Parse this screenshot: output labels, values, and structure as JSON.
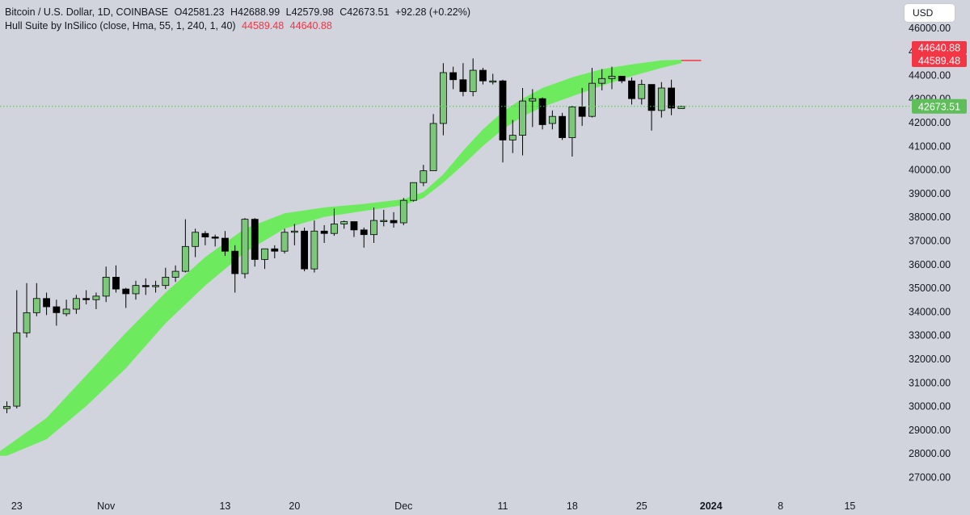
{
  "legend": {
    "symbol": "Bitcoin / U.S. Dollar, 1D, COINBASE",
    "open": "O42581.23",
    "high": "H42688.99",
    "low": "L42579.98",
    "close": "C42673.51",
    "change": "+92.28 (+0.22%)",
    "indicator": "Hull Suite by InSilico (close, Hma, 55, 1, 240, 1, 40)",
    "ind_val1": "44589.48",
    "ind_val2": "44640.88"
  },
  "currency_button": "USD",
  "colors": {
    "background": "#d1d4dc",
    "up": "#7cc77a",
    "down": "#000000",
    "hull_band": "#6eea5f",
    "price_label": "#5fbd5a",
    "hull_label": "#f23645"
  },
  "chart_data": {
    "type": "candlestick",
    "ylim": [
      26500,
      46500
    ],
    "y_ticks": [
      "27000.00",
      "28000.00",
      "29000.00",
      "30000.00",
      "31000.00",
      "32000.00",
      "33000.00",
      "34000.00",
      "35000.00",
      "36000.00",
      "37000.00",
      "38000.00",
      "39000.00",
      "40000.00",
      "41000.00",
      "42000.00",
      "43000.00",
      "44000.00",
      "45000.00",
      "46000.00"
    ],
    "x_ticks": [
      {
        "label": "23",
        "bold": false,
        "date": "2023-10-23"
      },
      {
        "label": "Nov",
        "bold": false,
        "date": "2023-11-01"
      },
      {
        "label": "13",
        "bold": false,
        "date": "2023-11-13"
      },
      {
        "label": "20",
        "bold": false,
        "date": "2023-11-20"
      },
      {
        "label": "Dec",
        "bold": false,
        "date": "2023-12-01"
      },
      {
        "label": "11",
        "bold": false,
        "date": "2023-12-11"
      },
      {
        "label": "18",
        "bold": false,
        "date": "2023-12-18"
      },
      {
        "label": "25",
        "bold": false,
        "date": "2023-12-25"
      },
      {
        "label": "2024",
        "bold": true,
        "date": "2024-01-01"
      },
      {
        "label": "8",
        "bold": false,
        "date": "2024-01-08"
      },
      {
        "label": "15",
        "bold": false,
        "date": "2024-01-15"
      }
    ],
    "candles": [
      {
        "d": "2023-10-22",
        "o": 29900,
        "h": 30200,
        "l": 29700,
        "c": 29990
      },
      {
        "d": "2023-10-23",
        "o": 30000,
        "h": 34900,
        "l": 29900,
        "c": 33100
      },
      {
        "d": "2023-10-24",
        "o": 33100,
        "h": 35200,
        "l": 32900,
        "c": 33950
      },
      {
        "d": "2023-10-25",
        "o": 33950,
        "h": 35200,
        "l": 33800,
        "c": 34550
      },
      {
        "d": "2023-10-26",
        "o": 34550,
        "h": 34800,
        "l": 33850,
        "c": 34200
      },
      {
        "d": "2023-10-27",
        "o": 34200,
        "h": 34500,
        "l": 33400,
        "c": 33950
      },
      {
        "d": "2023-10-28",
        "o": 33900,
        "h": 34500,
        "l": 33800,
        "c": 34100
      },
      {
        "d": "2023-10-29",
        "o": 34100,
        "h": 34700,
        "l": 33900,
        "c": 34550
      },
      {
        "d": "2023-10-30",
        "o": 34550,
        "h": 34900,
        "l": 34300,
        "c": 34500
      },
      {
        "d": "2023-10-31",
        "o": 34500,
        "h": 34800,
        "l": 34100,
        "c": 34650
      },
      {
        "d": "2023-11-01",
        "o": 34650,
        "h": 35900,
        "l": 34400,
        "c": 35450
      },
      {
        "d": "2023-11-02",
        "o": 35450,
        "h": 35950,
        "l": 34800,
        "c": 34950
      },
      {
        "d": "2023-11-03",
        "o": 34950,
        "h": 35000,
        "l": 34150,
        "c": 34750
      },
      {
        "d": "2023-11-04",
        "o": 34750,
        "h": 35300,
        "l": 34500,
        "c": 35100
      },
      {
        "d": "2023-11-05",
        "o": 35100,
        "h": 35400,
        "l": 34700,
        "c": 35050
      },
      {
        "d": "2023-11-06",
        "o": 35050,
        "h": 35300,
        "l": 34800,
        "c": 35100
      },
      {
        "d": "2023-11-07",
        "o": 35100,
        "h": 35850,
        "l": 34950,
        "c": 35450
      },
      {
        "d": "2023-11-08",
        "o": 35450,
        "h": 35950,
        "l": 35250,
        "c": 35700
      },
      {
        "d": "2023-11-09",
        "o": 35700,
        "h": 37900,
        "l": 35650,
        "c": 36750
      },
      {
        "d": "2023-11-10",
        "o": 36750,
        "h": 37500,
        "l": 36300,
        "c": 37350
      },
      {
        "d": "2023-11-11",
        "o": 37300,
        "h": 37400,
        "l": 36800,
        "c": 37150
      },
      {
        "d": "2023-11-12",
        "o": 37150,
        "h": 37250,
        "l": 36750,
        "c": 37100
      },
      {
        "d": "2023-11-13",
        "o": 37100,
        "h": 37400,
        "l": 36350,
        "c": 36550
      },
      {
        "d": "2023-11-14",
        "o": 36550,
        "h": 36800,
        "l": 34800,
        "c": 35600
      },
      {
        "d": "2023-11-15",
        "o": 35600,
        "h": 37950,
        "l": 35400,
        "c": 37900
      },
      {
        "d": "2023-11-16",
        "o": 37900,
        "h": 37950,
        "l": 35900,
        "c": 36200
      },
      {
        "d": "2023-11-17",
        "o": 36200,
        "h": 36600,
        "l": 35800,
        "c": 36650
      },
      {
        "d": "2023-11-18",
        "o": 36650,
        "h": 36800,
        "l": 36250,
        "c": 36550
      },
      {
        "d": "2023-11-19",
        "o": 36550,
        "h": 37500,
        "l": 36450,
        "c": 37350
      },
      {
        "d": "2023-11-20",
        "o": 37350,
        "h": 37700,
        "l": 36800,
        "c": 37400
      },
      {
        "d": "2023-11-21",
        "o": 37400,
        "h": 37550,
        "l": 35700,
        "c": 35800
      },
      {
        "d": "2023-11-22",
        "o": 35800,
        "h": 37850,
        "l": 35650,
        "c": 37400
      },
      {
        "d": "2023-11-23",
        "o": 37400,
        "h": 37650,
        "l": 36900,
        "c": 37300
      },
      {
        "d": "2023-11-24",
        "o": 37300,
        "h": 38350,
        "l": 37200,
        "c": 37700
      },
      {
        "d": "2023-11-25",
        "o": 37700,
        "h": 37850,
        "l": 37500,
        "c": 37800
      },
      {
        "d": "2023-11-26",
        "o": 37800,
        "h": 37800,
        "l": 37150,
        "c": 37450
      },
      {
        "d": "2023-11-27",
        "o": 37450,
        "h": 37550,
        "l": 36700,
        "c": 37250
      },
      {
        "d": "2023-11-28",
        "o": 37250,
        "h": 38400,
        "l": 36900,
        "c": 37850
      },
      {
        "d": "2023-11-29",
        "o": 37850,
        "h": 38300,
        "l": 37600,
        "c": 37850
      },
      {
        "d": "2023-11-30",
        "o": 37850,
        "h": 38200,
        "l": 37550,
        "c": 37750
      },
      {
        "d": "2023-12-01",
        "o": 37750,
        "h": 38800,
        "l": 37650,
        "c": 38700
      },
      {
        "d": "2023-12-02",
        "o": 38700,
        "h": 39450,
        "l": 38650,
        "c": 39450
      },
      {
        "d": "2023-12-03",
        "o": 39450,
        "h": 40200,
        "l": 39300,
        "c": 39950
      },
      {
        "d": "2023-12-04",
        "o": 39950,
        "h": 42350,
        "l": 39950,
        "c": 41950
      },
      {
        "d": "2023-12-05",
        "o": 41950,
        "h": 44500,
        "l": 41450,
        "c": 44100
      },
      {
        "d": "2023-12-06",
        "o": 44100,
        "h": 44350,
        "l": 43400,
        "c": 43800
      },
      {
        "d": "2023-12-07",
        "o": 43800,
        "h": 44500,
        "l": 43100,
        "c": 43300
      },
      {
        "d": "2023-12-08",
        "o": 43300,
        "h": 44700,
        "l": 43100,
        "c": 44200
      },
      {
        "d": "2023-12-09",
        "o": 44200,
        "h": 44300,
        "l": 43600,
        "c": 43750
      },
      {
        "d": "2023-12-10",
        "o": 43750,
        "h": 44050,
        "l": 43600,
        "c": 43750
      },
      {
        "d": "2023-12-11",
        "o": 43750,
        "h": 43800,
        "l": 40300,
        "c": 41250
      },
      {
        "d": "2023-12-12",
        "o": 41250,
        "h": 42100,
        "l": 40700,
        "c": 41450
      },
      {
        "d": "2023-12-13",
        "o": 41450,
        "h": 43450,
        "l": 40600,
        "c": 42900
      },
      {
        "d": "2023-12-14",
        "o": 42900,
        "h": 43400,
        "l": 41800,
        "c": 43000
      },
      {
        "d": "2023-12-15",
        "o": 43000,
        "h": 43050,
        "l": 41700,
        "c": 41900
      },
      {
        "d": "2023-12-16",
        "o": 41950,
        "h": 42500,
        "l": 41700,
        "c": 42250
      },
      {
        "d": "2023-12-17",
        "o": 42250,
        "h": 42400,
        "l": 41250,
        "c": 41350
      },
      {
        "d": "2023-12-18",
        "o": 41350,
        "h": 42700,
        "l": 40550,
        "c": 42650
      },
      {
        "d": "2023-12-19",
        "o": 42650,
        "h": 43450,
        "l": 41850,
        "c": 42250
      },
      {
        "d": "2023-12-20",
        "o": 42250,
        "h": 44300,
        "l": 42200,
        "c": 43650
      },
      {
        "d": "2023-12-21",
        "o": 43650,
        "h": 44250,
        "l": 43350,
        "c": 43850
      },
      {
        "d": "2023-12-22",
        "o": 43850,
        "h": 44350,
        "l": 43400,
        "c": 43950
      },
      {
        "d": "2023-12-23",
        "o": 43950,
        "h": 43950,
        "l": 43650,
        "c": 43750
      },
      {
        "d": "2023-12-24",
        "o": 43750,
        "h": 43900,
        "l": 42750,
        "c": 43000
      },
      {
        "d": "2023-12-25",
        "o": 43000,
        "h": 43800,
        "l": 42750,
        "c": 43600
      },
      {
        "d": "2023-12-26",
        "o": 43600,
        "h": 43600,
        "l": 41650,
        "c": 42500
      },
      {
        "d": "2023-12-27",
        "o": 42500,
        "h": 43700,
        "l": 42200,
        "c": 43450
      },
      {
        "d": "2023-12-28",
        "o": 43450,
        "h": 43800,
        "l": 42300,
        "c": 42600
      },
      {
        "d": "2023-12-29",
        "o": 42581.23,
        "h": 42688.99,
        "l": 42579.98,
        "c": 42673.51
      }
    ],
    "hull_band": [
      {
        "d": "2023-10-22",
        "a": 27900,
        "b": 28300
      },
      {
        "d": "2023-10-26",
        "a": 28600,
        "b": 29500
      },
      {
        "d": "2023-10-30",
        "a": 30000,
        "b": 31300
      },
      {
        "d": "2023-11-03",
        "a": 31600,
        "b": 33100
      },
      {
        "d": "2023-11-07",
        "a": 33500,
        "b": 34800
      },
      {
        "d": "2023-11-11",
        "a": 35100,
        "b": 36300
      },
      {
        "d": "2023-11-15",
        "a": 36500,
        "b": 37500
      },
      {
        "d": "2023-11-19",
        "a": 37500,
        "b": 38150
      },
      {
        "d": "2023-11-23",
        "a": 38000,
        "b": 38400
      },
      {
        "d": "2023-11-27",
        "a": 38250,
        "b": 38550
      },
      {
        "d": "2023-12-01",
        "a": 38500,
        "b": 38750
      },
      {
        "d": "2023-12-03",
        "a": 38800,
        "b": 39050
      },
      {
        "d": "2023-12-05",
        "a": 39450,
        "b": 39800
      },
      {
        "d": "2023-12-07",
        "a": 40200,
        "b": 40800
      },
      {
        "d": "2023-12-09",
        "a": 41000,
        "b": 41700
      },
      {
        "d": "2023-12-11",
        "a": 41700,
        "b": 42450
      },
      {
        "d": "2023-12-13",
        "a": 42250,
        "b": 43000
      },
      {
        "d": "2023-12-15",
        "a": 42650,
        "b": 43450
      },
      {
        "d": "2023-12-18",
        "a": 43100,
        "b": 43900
      },
      {
        "d": "2023-12-21",
        "a": 43550,
        "b": 44250
      },
      {
        "d": "2023-12-24",
        "a": 43950,
        "b": 44450
      },
      {
        "d": "2023-12-27",
        "a": 44300,
        "b": 44620
      },
      {
        "d": "2023-12-29",
        "a": 44500,
        "b": 44640
      }
    ],
    "hull_tail": {
      "from": "2023-12-29",
      "to": "2023-12-31",
      "value": 44615
    },
    "last_price": 42673.51,
    "last_price_label": "42673.51",
    "hull_labels": [
      "44640.88",
      "44589.48"
    ]
  }
}
